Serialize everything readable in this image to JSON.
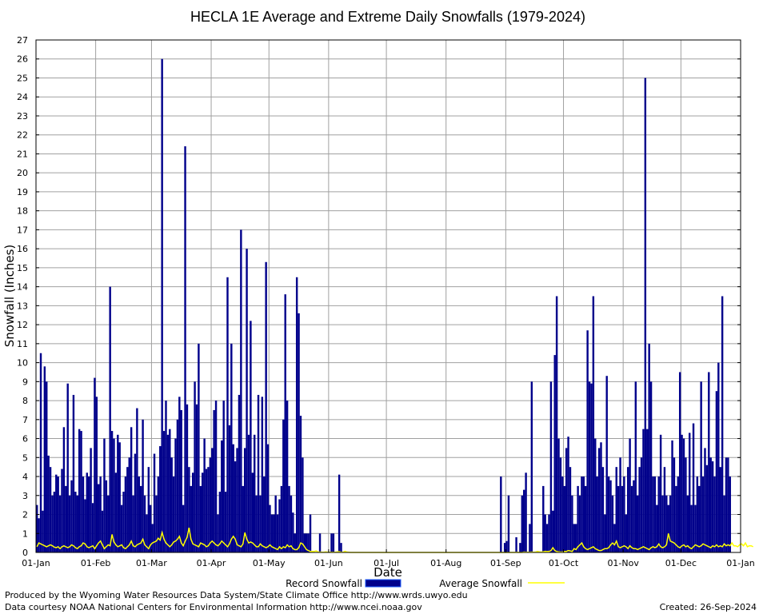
{
  "chart_data": {
    "type": "bar",
    "title": "HECLA 1E Average and Extreme Daily Snowfalls (1979-2024)",
    "xlabel": "Date",
    "ylabel": "Snowfall (Inches)",
    "ylim": [
      0,
      27
    ],
    "xlim_days": [
      1,
      366
    ],
    "y_ticks": [
      0,
      1,
      2,
      3,
      4,
      5,
      6,
      7,
      8,
      9,
      10,
      11,
      12,
      13,
      14,
      15,
      16,
      17,
      18,
      19,
      20,
      21,
      22,
      23,
      24,
      25,
      26,
      27
    ],
    "x_ticks": [
      {
        "label": "01-Jan",
        "day": 1
      },
      {
        "label": "01-Feb",
        "day": 32
      },
      {
        "label": "01-Mar",
        "day": 61
      },
      {
        "label": "01-Apr",
        "day": 92
      },
      {
        "label": "01-May",
        "day": 122
      },
      {
        "label": "01-Jun",
        "day": 153
      },
      {
        "label": "01-Jul",
        "day": 183
      },
      {
        "label": "01-Aug",
        "day": 214
      },
      {
        "label": "01-Sep",
        "day": 245
      },
      {
        "label": "01-Oct",
        "day": 275
      },
      {
        "label": "01-Nov",
        "day": 306
      },
      {
        "label": "01-Dec",
        "day": 336
      },
      {
        "label": "01-Jan",
        "day": 367
      }
    ],
    "grid": true,
    "legend_position": "bottom",
    "series": [
      {
        "name": "Record Snowfall",
        "kind": "bar",
        "color": "#00008b",
        "values": [
          2.5,
          1.8,
          10.5,
          2.2,
          9.8,
          9,
          5.1,
          4.5,
          3,
          3.2,
          4.1,
          4,
          3,
          4.4,
          6.6,
          3.5,
          8.9,
          3,
          3.8,
          8.3,
          3.2,
          3,
          6.5,
          6.4,
          4,
          2.8,
          4.2,
          4,
          5.5,
          2.6,
          9.2,
          8.2,
          3.6,
          4,
          2.2,
          6,
          3.8,
          3,
          14,
          6.4,
          6,
          4.2,
          6.2,
          5.8,
          2.5,
          3.2,
          4,
          4.5,
          5,
          6.6,
          3,
          5.2,
          7.6,
          4,
          3.5,
          7,
          3,
          2,
          4.5,
          2.5,
          1.5,
          5.2,
          3,
          4,
          5.6,
          26,
          6.4,
          8,
          6.2,
          6.5,
          5,
          4,
          6,
          7,
          8.2,
          7.5,
          2.5,
          21.4,
          7.8,
          4.5,
          3.5,
          4.2,
          9,
          7.8,
          11,
          3.5,
          4.2,
          6,
          4.4,
          4.5,
          5,
          5.5,
          7.5,
          8,
          2,
          3.2,
          5.9,
          8,
          3.2,
          14.5,
          6.7,
          11,
          5.7,
          4.8,
          5.5,
          8.3,
          17,
          3.5,
          5.5,
          16,
          6.2,
          12.2,
          4.2,
          6.2,
          3,
          8.3,
          3,
          8.2,
          4,
          15.3,
          5.7,
          2.5,
          2,
          2,
          3,
          2,
          2.8,
          3.5,
          7,
          13.6,
          8,
          3.5,
          3,
          2.1,
          1,
          14.5,
          12.6,
          7.2,
          5,
          1,
          1,
          1,
          2,
          0,
          0,
          0,
          0,
          1,
          0,
          0,
          0,
          0,
          0,
          1,
          1,
          0,
          0,
          4.1,
          0.5,
          0,
          0,
          0,
          0,
          0,
          0,
          0,
          0,
          0,
          0,
          0,
          0,
          0,
          0,
          0,
          0,
          0,
          0,
          0,
          0,
          0,
          0,
          0,
          0,
          0,
          0,
          0,
          0,
          0,
          0,
          0,
          0,
          0,
          0,
          0,
          0,
          0,
          0,
          0,
          0,
          0,
          0,
          0,
          0,
          0,
          0,
          0,
          0,
          0,
          0,
          0,
          0,
          0,
          0,
          0,
          0,
          0,
          0,
          0,
          0,
          0,
          0,
          0,
          0,
          0,
          0,
          0,
          0,
          0,
          0,
          0,
          0,
          0,
          0,
          0,
          0,
          0,
          0,
          0,
          0,
          0,
          0,
          4,
          0,
          0.5,
          0.6,
          3,
          0,
          0,
          0,
          0.8,
          0,
          0.5,
          3,
          3.3,
          4.2,
          0,
          1.5,
          9,
          0,
          0,
          0,
          0,
          0,
          3.5,
          2,
          1.5,
          2,
          9,
          2.2,
          10.4,
          13.5,
          6,
          5,
          4,
          3.5,
          5.5,
          6.1,
          4.5,
          3,
          1.5,
          1.5,
          3.5,
          3,
          4,
          4,
          3.5,
          11.7,
          9,
          8.9,
          13.5,
          6,
          4,
          5.5,
          5.8,
          4.5,
          2,
          9.3,
          4,
          3.8,
          3,
          1.5,
          4.5,
          3.5,
          5,
          3.5,
          4,
          2,
          4.5,
          6,
          3.5,
          3.8,
          9,
          3,
          4.5,
          5,
          6.5,
          25,
          6.5,
          11,
          9,
          4,
          4,
          2.5,
          4,
          6.2,
          3,
          4.5,
          3,
          2.5,
          3,
          5.9,
          5,
          3.5,
          4,
          9.5,
          6.2,
          6,
          5,
          3,
          6.3,
          2.5,
          6.8,
          2.5,
          4,
          3.5,
          9,
          4,
          5.5,
          4.6,
          9.5,
          5,
          4.8,
          4,
          8.5,
          10,
          4.5,
          13.5,
          3,
          5,
          5,
          4
        ]
      },
      {
        "name": "Average Snowfall",
        "kind": "line",
        "color": "#ffff00",
        "values": [
          0.3,
          0.5,
          0.45,
          0.4,
          0.35,
          0.3,
          0.35,
          0.4,
          0.35,
          0.28,
          0.25,
          0.3,
          0.2,
          0.3,
          0.35,
          0.3,
          0.25,
          0.3,
          0.4,
          0.35,
          0.25,
          0.2,
          0.3,
          0.35,
          0.5,
          0.45,
          0.3,
          0.25,
          0.3,
          0.35,
          0.2,
          0.35,
          0.5,
          0.6,
          0.4,
          0.2,
          0.3,
          0.4,
          0.35,
          0.95,
          0.55,
          0.4,
          0.3,
          0.35,
          0.4,
          0.25,
          0.2,
          0.3,
          0.4,
          0.6,
          0.35,
          0.3,
          0.4,
          0.45,
          0.5,
          0.7,
          0.4,
          0.3,
          0.2,
          0.4,
          0.5,
          0.55,
          0.6,
          0.75,
          0.65,
          1.05,
          0.7,
          0.5,
          0.4,
          0.3,
          0.4,
          0.55,
          0.6,
          0.7,
          0.85,
          0.5,
          0.35,
          0.6,
          0.8,
          1.3,
          0.7,
          0.45,
          0.4,
          0.35,
          0.3,
          0.5,
          0.45,
          0.4,
          0.3,
          0.35,
          0.5,
          0.6,
          0.5,
          0.4,
          0.35,
          0.45,
          0.6,
          0.5,
          0.4,
          0.3,
          0.45,
          0.7,
          0.85,
          0.7,
          0.4,
          0.35,
          0.3,
          0.45,
          1.05,
          0.7,
          0.5,
          0.55,
          0.5,
          0.4,
          0.3,
          0.3,
          0.45,
          0.35,
          0.3,
          0.25,
          0.3,
          0.4,
          0.3,
          0.25,
          0.2,
          0.15,
          0.3,
          0.2,
          0.3,
          0.25,
          0.4,
          0.3,
          0.35,
          0.2,
          0.15,
          0.15,
          0.25,
          0.5,
          0.45,
          0.3,
          0.15,
          0.1,
          0.05,
          0.05,
          0.05,
          0.08,
          0.02,
          0.02,
          0.01,
          0.01,
          0.03,
          0.01,
          0.01,
          0.01,
          0.01,
          0.01,
          0.03,
          0.04,
          0.01,
          0.01,
          0.06,
          0.02,
          0.01,
          0,
          0,
          0,
          0,
          0,
          0,
          0,
          0,
          0,
          0,
          0,
          0,
          0,
          0,
          0,
          0,
          0,
          0,
          0,
          0,
          0,
          0,
          0,
          0,
          0,
          0,
          0,
          0,
          0,
          0,
          0,
          0,
          0,
          0,
          0,
          0,
          0,
          0,
          0,
          0,
          0,
          0,
          0,
          0,
          0,
          0,
          0,
          0,
          0,
          0,
          0,
          0,
          0,
          0,
          0,
          0,
          0,
          0,
          0,
          0,
          0,
          0,
          0,
          0,
          0,
          0,
          0,
          0,
          0,
          0,
          0,
          0,
          0,
          0,
          0,
          0,
          0,
          0,
          0,
          0,
          0,
          0,
          0,
          0,
          0,
          0,
          0.01,
          0,
          0,
          0,
          0.02,
          0.01,
          0.01,
          0.01,
          0.02,
          0.01,
          0.02,
          0.05,
          0.03,
          0.02,
          0.04,
          0.06,
          0.05,
          0.05,
          0.1,
          0.25,
          0.1,
          0.05,
          0.03,
          0.02,
          0.02,
          0.05,
          0.05,
          0.1,
          0.08,
          0.05,
          0.2,
          0.15,
          0.3,
          0.4,
          0.5,
          0.3,
          0.2,
          0.15,
          0.2,
          0.25,
          0.3,
          0.2,
          0.15,
          0.1,
          0.1,
          0.15,
          0.2,
          0.2,
          0.25,
          0.4,
          0.5,
          0.4,
          0.6,
          0.3,
          0.25,
          0.3,
          0.35,
          0.3,
          0.2,
          0.35,
          0.25,
          0.2,
          0.2,
          0.15,
          0.2,
          0.25,
          0.3,
          0.25,
          0.2,
          0.15,
          0.25,
          0.3,
          0.25,
          0.3,
          0.45,
          0.3,
          0.25,
          0.3,
          0.4,
          1.0,
          0.6,
          0.55,
          0.5,
          0.4,
          0.3,
          0.25,
          0.35,
          0.4,
          0.3,
          0.35,
          0.25,
          0.2,
          0.3,
          0.4,
          0.35,
          0.3,
          0.35,
          0.45,
          0.4,
          0.35,
          0.3,
          0.25,
          0.35,
          0.3,
          0.4,
          0.3,
          0.35,
          0.3,
          0.45,
          0.35,
          0.4,
          0.35,
          0.5,
          0.35,
          0.35,
          0.3,
          0.4,
          0.45,
          0.35,
          0.5,
          0.3,
          0.35,
          0.35,
          0.3
        ]
      }
    ]
  },
  "footer": {
    "produced_by": "Produced by the Wyoming Water Resources Data System/State Climate Office http://www.wrds.uwyo.edu",
    "courtesy": "Data courtesy NOAA National Centers for Environmental Information http://www.ncei.noaa.gov",
    "created": "Created:  26-Sep-2024"
  }
}
